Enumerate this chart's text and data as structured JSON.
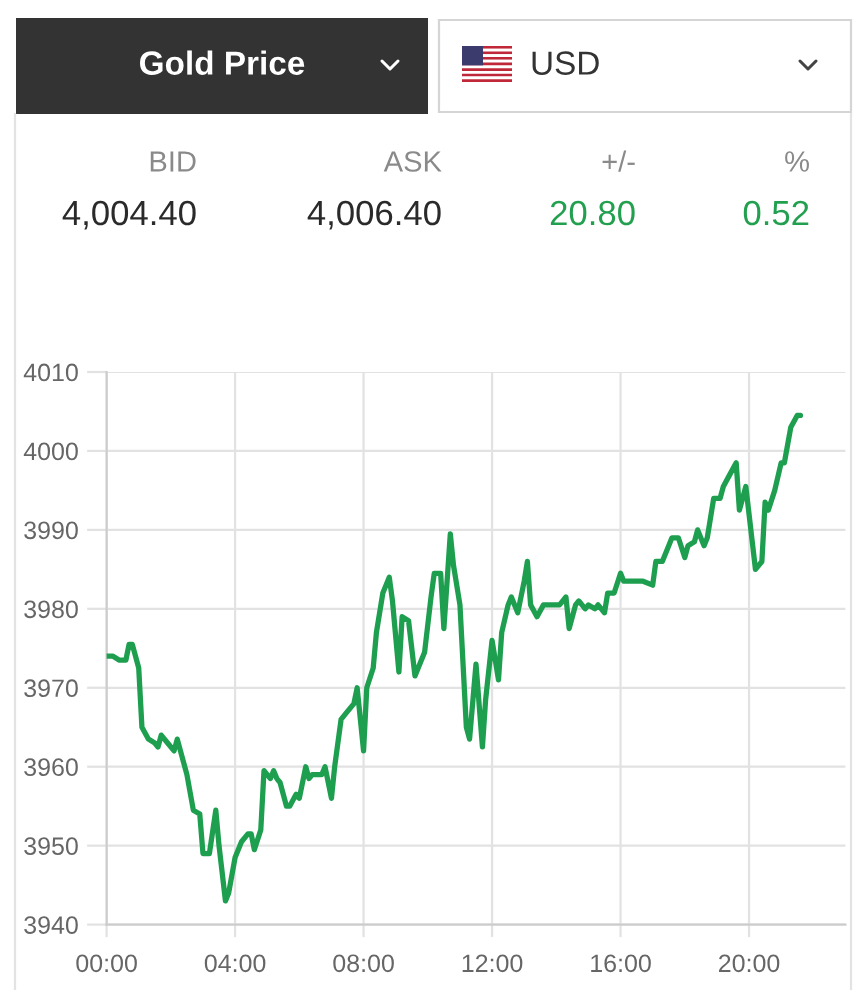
{
  "chart_data": {
    "type": "line",
    "title": "Gold Price",
    "annotations": [
      "USD",
      "BID",
      "ASK",
      "+/-",
      "%",
      "4,004.40",
      "4,006.40",
      "20.80",
      "0.52"
    ],
    "x": [
      0.0,
      0.2,
      0.4,
      0.6,
      0.7,
      0.8,
      1.0,
      1.1,
      1.3,
      1.5,
      1.6,
      1.7,
      1.9,
      2.1,
      2.2,
      2.5,
      2.7,
      2.9,
      3.0,
      3.2,
      3.4,
      3.5,
      3.7,
      3.8,
      4.0,
      4.2,
      4.4,
      4.5,
      4.6,
      4.8,
      4.9,
      5.1,
      5.2,
      5.3,
      5.4,
      5.6,
      5.7,
      5.9,
      6.0,
      6.2,
      6.3,
      6.4,
      6.7,
      6.8,
      7.0,
      7.1,
      7.3,
      7.5,
      7.7,
      7.8,
      8.0,
      8.1,
      8.3,
      8.4,
      8.6,
      8.8,
      8.9,
      9.1,
      9.2,
      9.4,
      9.6,
      9.7,
      9.9,
      10.1,
      10.2,
      10.4,
      10.5,
      10.7,
      10.8,
      11.0,
      11.2,
      11.3,
      11.5,
      11.7,
      11.8,
      12.0,
      12.2,
      12.3,
      12.5,
      12.6,
      12.8,
      13.0,
      13.1,
      13.2,
      13.4,
      13.6,
      13.8,
      14.0,
      14.1,
      14.3,
      14.4,
      14.6,
      14.7,
      14.9,
      15.0,
      15.2,
      15.3,
      15.5,
      15.6,
      15.8,
      16.0,
      16.1,
      16.4,
      16.7,
      17.0,
      17.1,
      17.3,
      17.5,
      17.6,
      17.8,
      18.0,
      18.1,
      18.3,
      18.4,
      18.6,
      18.7,
      18.9,
      19.1,
      19.2,
      19.4,
      19.6,
      19.7,
      19.9,
      20.0,
      20.1,
      20.2,
      20.4,
      20.5,
      20.6,
      20.8,
      21.0,
      21.1,
      21.3,
      21.5,
      21.6
    ],
    "series": [
      {
        "color": "#1e9f50",
        "values": [
          3974,
          3974,
          3973.5,
          3973.5,
          3975.5,
          3975.5,
          3972.5,
          3965,
          3963.5,
          3963,
          3962.5,
          3964,
          3963,
          3962,
          3963.5,
          3959,
          3954.5,
          3954,
          3949,
          3949,
          3954.5,
          3950,
          3943,
          3944,
          3948.5,
          3950.5,
          3951.5,
          3951.5,
          3949.5,
          3952,
          3959.5,
          3958.5,
          3959.5,
          3958.5,
          3958,
          3955,
          3955,
          3956.5,
          3956,
          3960,
          3958.5,
          3959,
          3959,
          3960,
          3956,
          3960,
          3966,
          3967,
          3968,
          3970,
          3962,
          3970,
          3972.5,
          3977,
          3982,
          3984,
          3981,
          3972,
          3979,
          3978.5,
          3971.5,
          3972.5,
          3974.5,
          3981.5,
          3984.5,
          3984.5,
          3977.5,
          3989.5,
          3985.5,
          3980.5,
          3965,
          3963.5,
          3973,
          3962.5,
          3968.5,
          3976,
          3971,
          3977,
          3980.5,
          3981.5,
          3979.5,
          3983.5,
          3986,
          3980.5,
          3979,
          3980.5,
          3980.5,
          3980.5,
          3980.5,
          3981.5,
          3977.5,
          3980.5,
          3981,
          3980,
          3980.5,
          3980,
          3980.5,
          3979.5,
          3982,
          3982,
          3984.5,
          3983.5,
          3983.5,
          3983.5,
          3983,
          3986,
          3986,
          3988,
          3989,
          3989,
          3986.5,
          3988,
          3988.5,
          3990,
          3988,
          3989,
          3994,
          3994,
          3995.5,
          3997,
          3998.5,
          3992.5,
          3995.5,
          3992,
          3988.5,
          3985,
          3986,
          3993.5,
          3992.5,
          3995,
          3998.5,
          3998.5,
          4003,
          4004.5,
          4004.5
        ]
      }
    ],
    "xlim": [
      0,
      23
    ],
    "xticks": [
      {
        "value": 0,
        "label": "00:00"
      },
      {
        "value": 4,
        "label": "04:00"
      },
      {
        "value": 8,
        "label": "08:00"
      },
      {
        "value": 12,
        "label": "12:00"
      },
      {
        "value": 16,
        "label": "16:00"
      },
      {
        "value": 20,
        "label": "20:00"
      }
    ],
    "ylim": [
      3940,
      4010
    ],
    "yticks": [
      3940,
      3950,
      3960,
      3970,
      3980,
      3990,
      4000,
      4010
    ],
    "grid": true
  }
}
